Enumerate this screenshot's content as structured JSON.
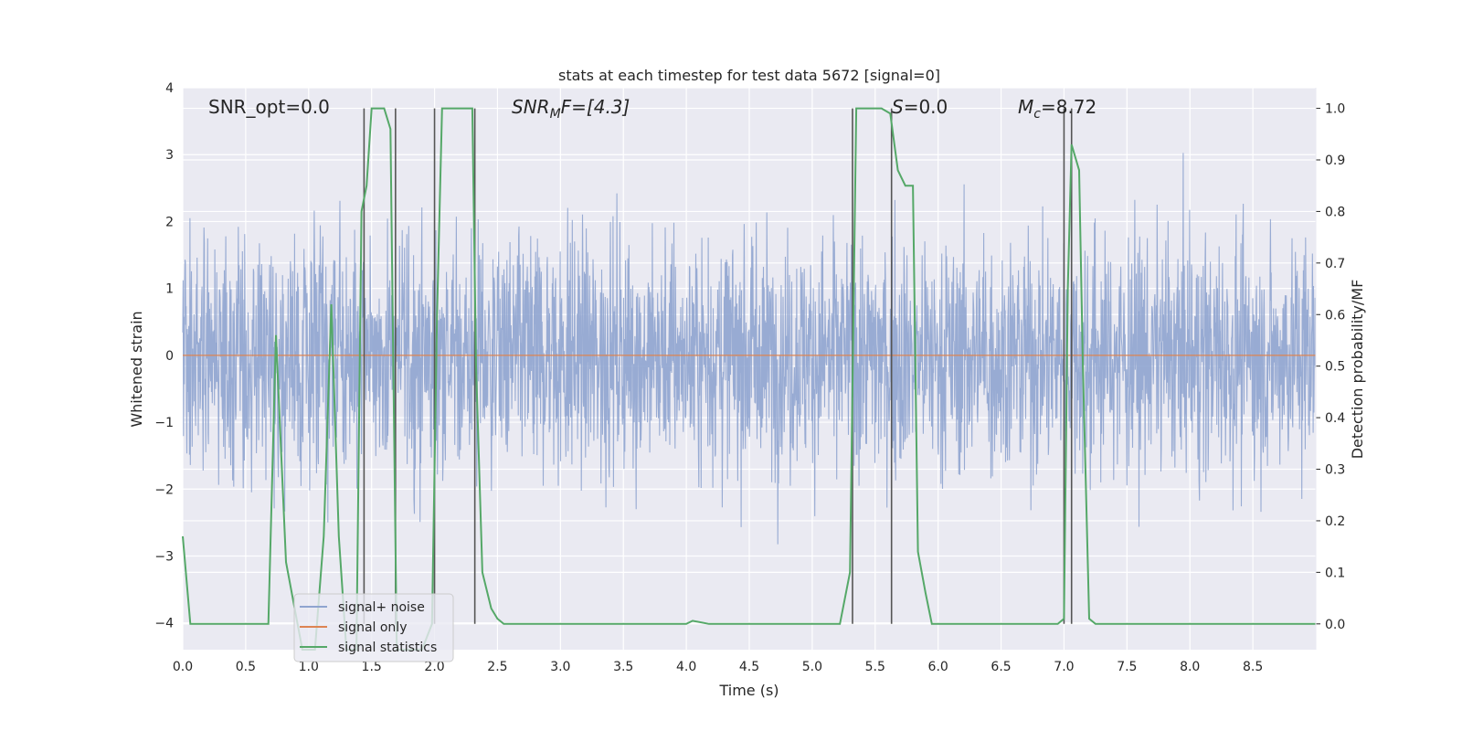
{
  "chart_data": {
    "type": "line",
    "title": "stats at each timestep for test data 5672 [signal=0]",
    "xlabel": "Time (s)",
    "ylabel": "Whitened strain",
    "y2label": "Detection probability/MF",
    "xlim": [
      0,
      9.0
    ],
    "ylim": [
      -4.4,
      4.0
    ],
    "y2lim": [
      -0.05,
      1.04
    ],
    "x_ticks": [
      "0.0",
      "0.5",
      "1.0",
      "1.5",
      "2.0",
      "2.5",
      "3.0",
      "3.5",
      "4.0",
      "4.5",
      "5.0",
      "5.5",
      "6.0",
      "6.5",
      "7.0",
      "7.5",
      "8.0",
      "8.5"
    ],
    "y_ticks": [
      "4",
      "3",
      "2",
      "1",
      "0",
      "−1",
      "−2",
      "−3",
      "−4"
    ],
    "y2_ticks": [
      "1.0",
      "0.9",
      "0.8",
      "0.7",
      "0.6",
      "0.5",
      "0.4",
      "0.3",
      "0.2",
      "0.1",
      "0.0"
    ],
    "grid": true,
    "legend_position": "bottom-left",
    "annotations": {
      "snr_opt": "SNR_opt=0.0",
      "snr_mf_base": "SNR",
      "snr_mf_sub": "M",
      "snr_mf_rest": "F=[4.3]",
      "s_italic": "S",
      "s_rest": "=0.0",
      "mc_base": "M",
      "mc_sub": "c",
      "mc_rest": "=8.72"
    },
    "series": [
      {
        "name": "signal+ noise",
        "color": "#8fa4cf",
        "description": "whitened strain noise, amplitude roughly within [-3.6, 3.6]"
      },
      {
        "name": "signal only",
        "color": "#dd8452",
        "x": [
          0,
          9.0
        ],
        "y": [
          0,
          0
        ]
      },
      {
        "name": "signal statistics",
        "color": "#55a868",
        "axis": "right",
        "x": [
          0.0,
          0.06,
          0.1,
          0.2,
          0.5,
          0.68,
          0.74,
          0.82,
          0.95,
          1.05,
          1.12,
          1.18,
          1.24,
          1.3,
          1.38,
          1.42,
          1.46,
          1.5,
          1.55,
          1.6,
          1.65,
          1.7,
          1.74,
          1.8,
          1.9,
          1.98,
          2.02,
          2.06,
          2.1,
          2.3,
          2.33,
          2.38,
          2.45,
          2.5,
          2.55,
          2.6,
          4.0,
          4.05,
          4.18,
          4.6,
          5.22,
          5.3,
          5.35,
          5.4,
          5.55,
          5.62,
          5.68,
          5.74,
          5.8,
          5.84,
          5.9,
          5.95,
          6.5,
          6.95,
          7.0,
          7.03,
          7.06,
          7.12,
          7.15,
          7.2,
          7.25,
          9.0
        ],
        "y": [
          0.17,
          0.0,
          0.0,
          0.0,
          0.0,
          0.0,
          0.56,
          0.12,
          -0.05,
          -0.05,
          0.17,
          0.62,
          0.17,
          -0.05,
          -0.05,
          0.8,
          0.85,
          1.0,
          1.0,
          1.0,
          0.96,
          -0.05,
          -0.05,
          -0.05,
          -0.05,
          0.0,
          0.6,
          1.0,
          1.0,
          1.0,
          0.5,
          0.1,
          0.03,
          0.01,
          0.0,
          0.0,
          0.0,
          0.006,
          0.0,
          0.0,
          0.0,
          0.1,
          1.0,
          1.0,
          1.0,
          0.99,
          0.88,
          0.85,
          0.85,
          0.14,
          0.06,
          0.0,
          0.0,
          0.0,
          0.01,
          0.65,
          0.93,
          0.88,
          0.5,
          0.01,
          0.0,
          0.0
        ]
      }
    ],
    "vertical_markers_x": [
      1.44,
      1.69,
      2.0,
      2.32,
      5.32,
      5.63,
      7.0,
      7.06
    ]
  }
}
